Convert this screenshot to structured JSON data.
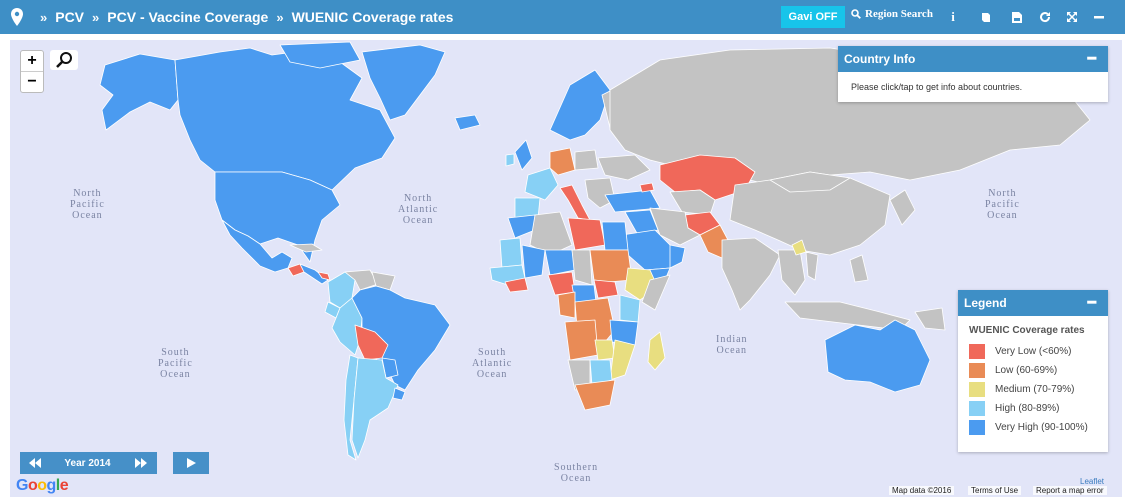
{
  "header": {
    "breadcrumbs": [
      "PCV",
      "PCV - Vaccine Coverage",
      "WUENIC Coverage rates"
    ],
    "gavi_button": "Gavi OFF",
    "region_search": "Region Search"
  },
  "icons": [
    "map-pin-icon",
    "double-chevron-icon",
    "search-icon",
    "info-icon",
    "book-icon",
    "download-icon",
    "refresh-icon",
    "expand-icon",
    "minimize-icon",
    "zoom-in-icon",
    "zoom-out-icon",
    "magnifier-icon",
    "rewind-icon",
    "fast-forward-icon",
    "play-icon"
  ],
  "map": {
    "zoom_in": "+",
    "zoom_out": "−",
    "oceans": {
      "north_pacific_left": "North\nPacific\nOcean",
      "north_atlantic": "North\nAtlantic\nOcean",
      "north_pacific_right": "North\nPacific\nOcean",
      "south_pacific": "South\nPacific\nOcean",
      "south_atlantic": "South\nAtlantic\nOcean",
      "indian": "Indian\nOcean",
      "southern": "Southern\nOcean"
    }
  },
  "country_info": {
    "title": "Country Info",
    "message": "Please click/tap to get info about countries."
  },
  "legend": {
    "title": "Legend",
    "subtitle": "WUENIC Coverage rates",
    "items": [
      {
        "label": "Very Low (<60%)",
        "color": "#f0685a"
      },
      {
        "label": "Low (60-69%)",
        "color": "#e98b56"
      },
      {
        "label": "Medium (70-79%)",
        "color": "#e8de80"
      },
      {
        "label": "High (80-89%)",
        "color": "#87d0f5"
      },
      {
        "label": "Very High (90-100%)",
        "color": "#4b9bf0"
      }
    ]
  },
  "timeline": {
    "year_label": "Year 2014"
  },
  "footer": {
    "google": "Google",
    "map_data": "Map data ©2016",
    "terms": "Terms of Use",
    "report": "Report a map error",
    "leaflet": "Leaflet"
  },
  "colors": {
    "header_bg": "#3e8fc6",
    "gavi_bg": "#17c4ea",
    "ocean": "#e2e5f8",
    "no_data": "#c3c3c3"
  }
}
